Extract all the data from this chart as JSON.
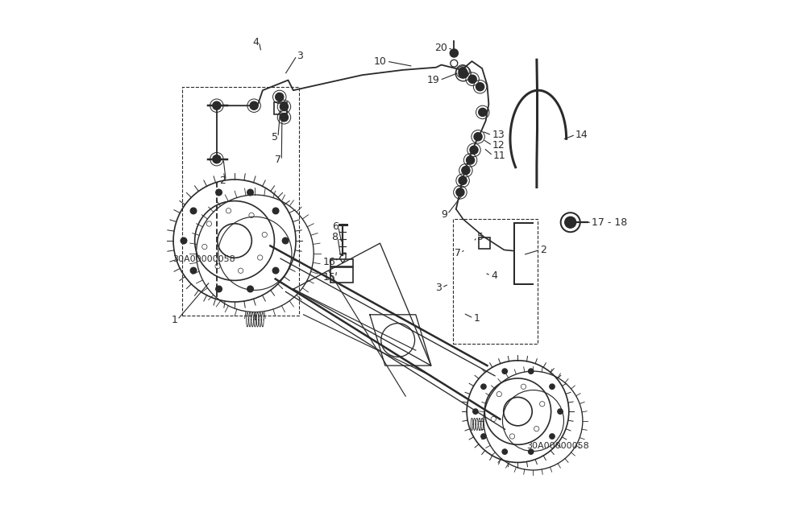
{
  "background_color": "#ffffff",
  "fig_width": 10.0,
  "fig_height": 6.36,
  "dpi": 100,
  "line_color": "#2a2a2a",
  "text_color": "#1a1a1a"
}
